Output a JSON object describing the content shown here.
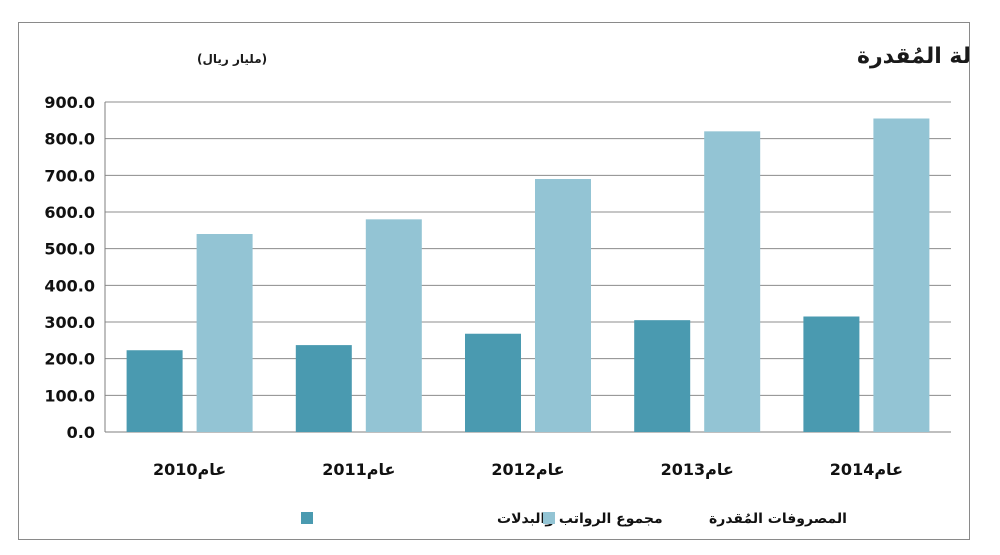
{
  "chart_data": {
    "type": "bar",
    "title": "مخصصات الرواتب والبدلات مقارنة بميزانية الدولة المُقدرة",
    "subtitle": "(مليار ريال)",
    "categories": [
      "عام2010",
      "عام2011",
      "عام2012",
      "عام2013",
      "عام2014"
    ],
    "series": [
      {
        "name": "مجموع الرواتب والبدلات",
        "color": "#4a9ab0",
        "values": [
          223,
          237,
          268,
          305,
          315
        ]
      },
      {
        "name": "المصروفات المُقدرة",
        "color": "#93c4d4",
        "values": [
          540,
          580,
          690,
          820,
          855
        ]
      }
    ],
    "y_ticks": [
      "0.0",
      "100.0",
      "200.0",
      "300.0",
      "400.0",
      "500.0",
      "600.0",
      "700.0",
      "800.0",
      "900.0"
    ],
    "ylim": [
      0,
      900
    ],
    "grid": true,
    "legend_position": "bottom"
  }
}
